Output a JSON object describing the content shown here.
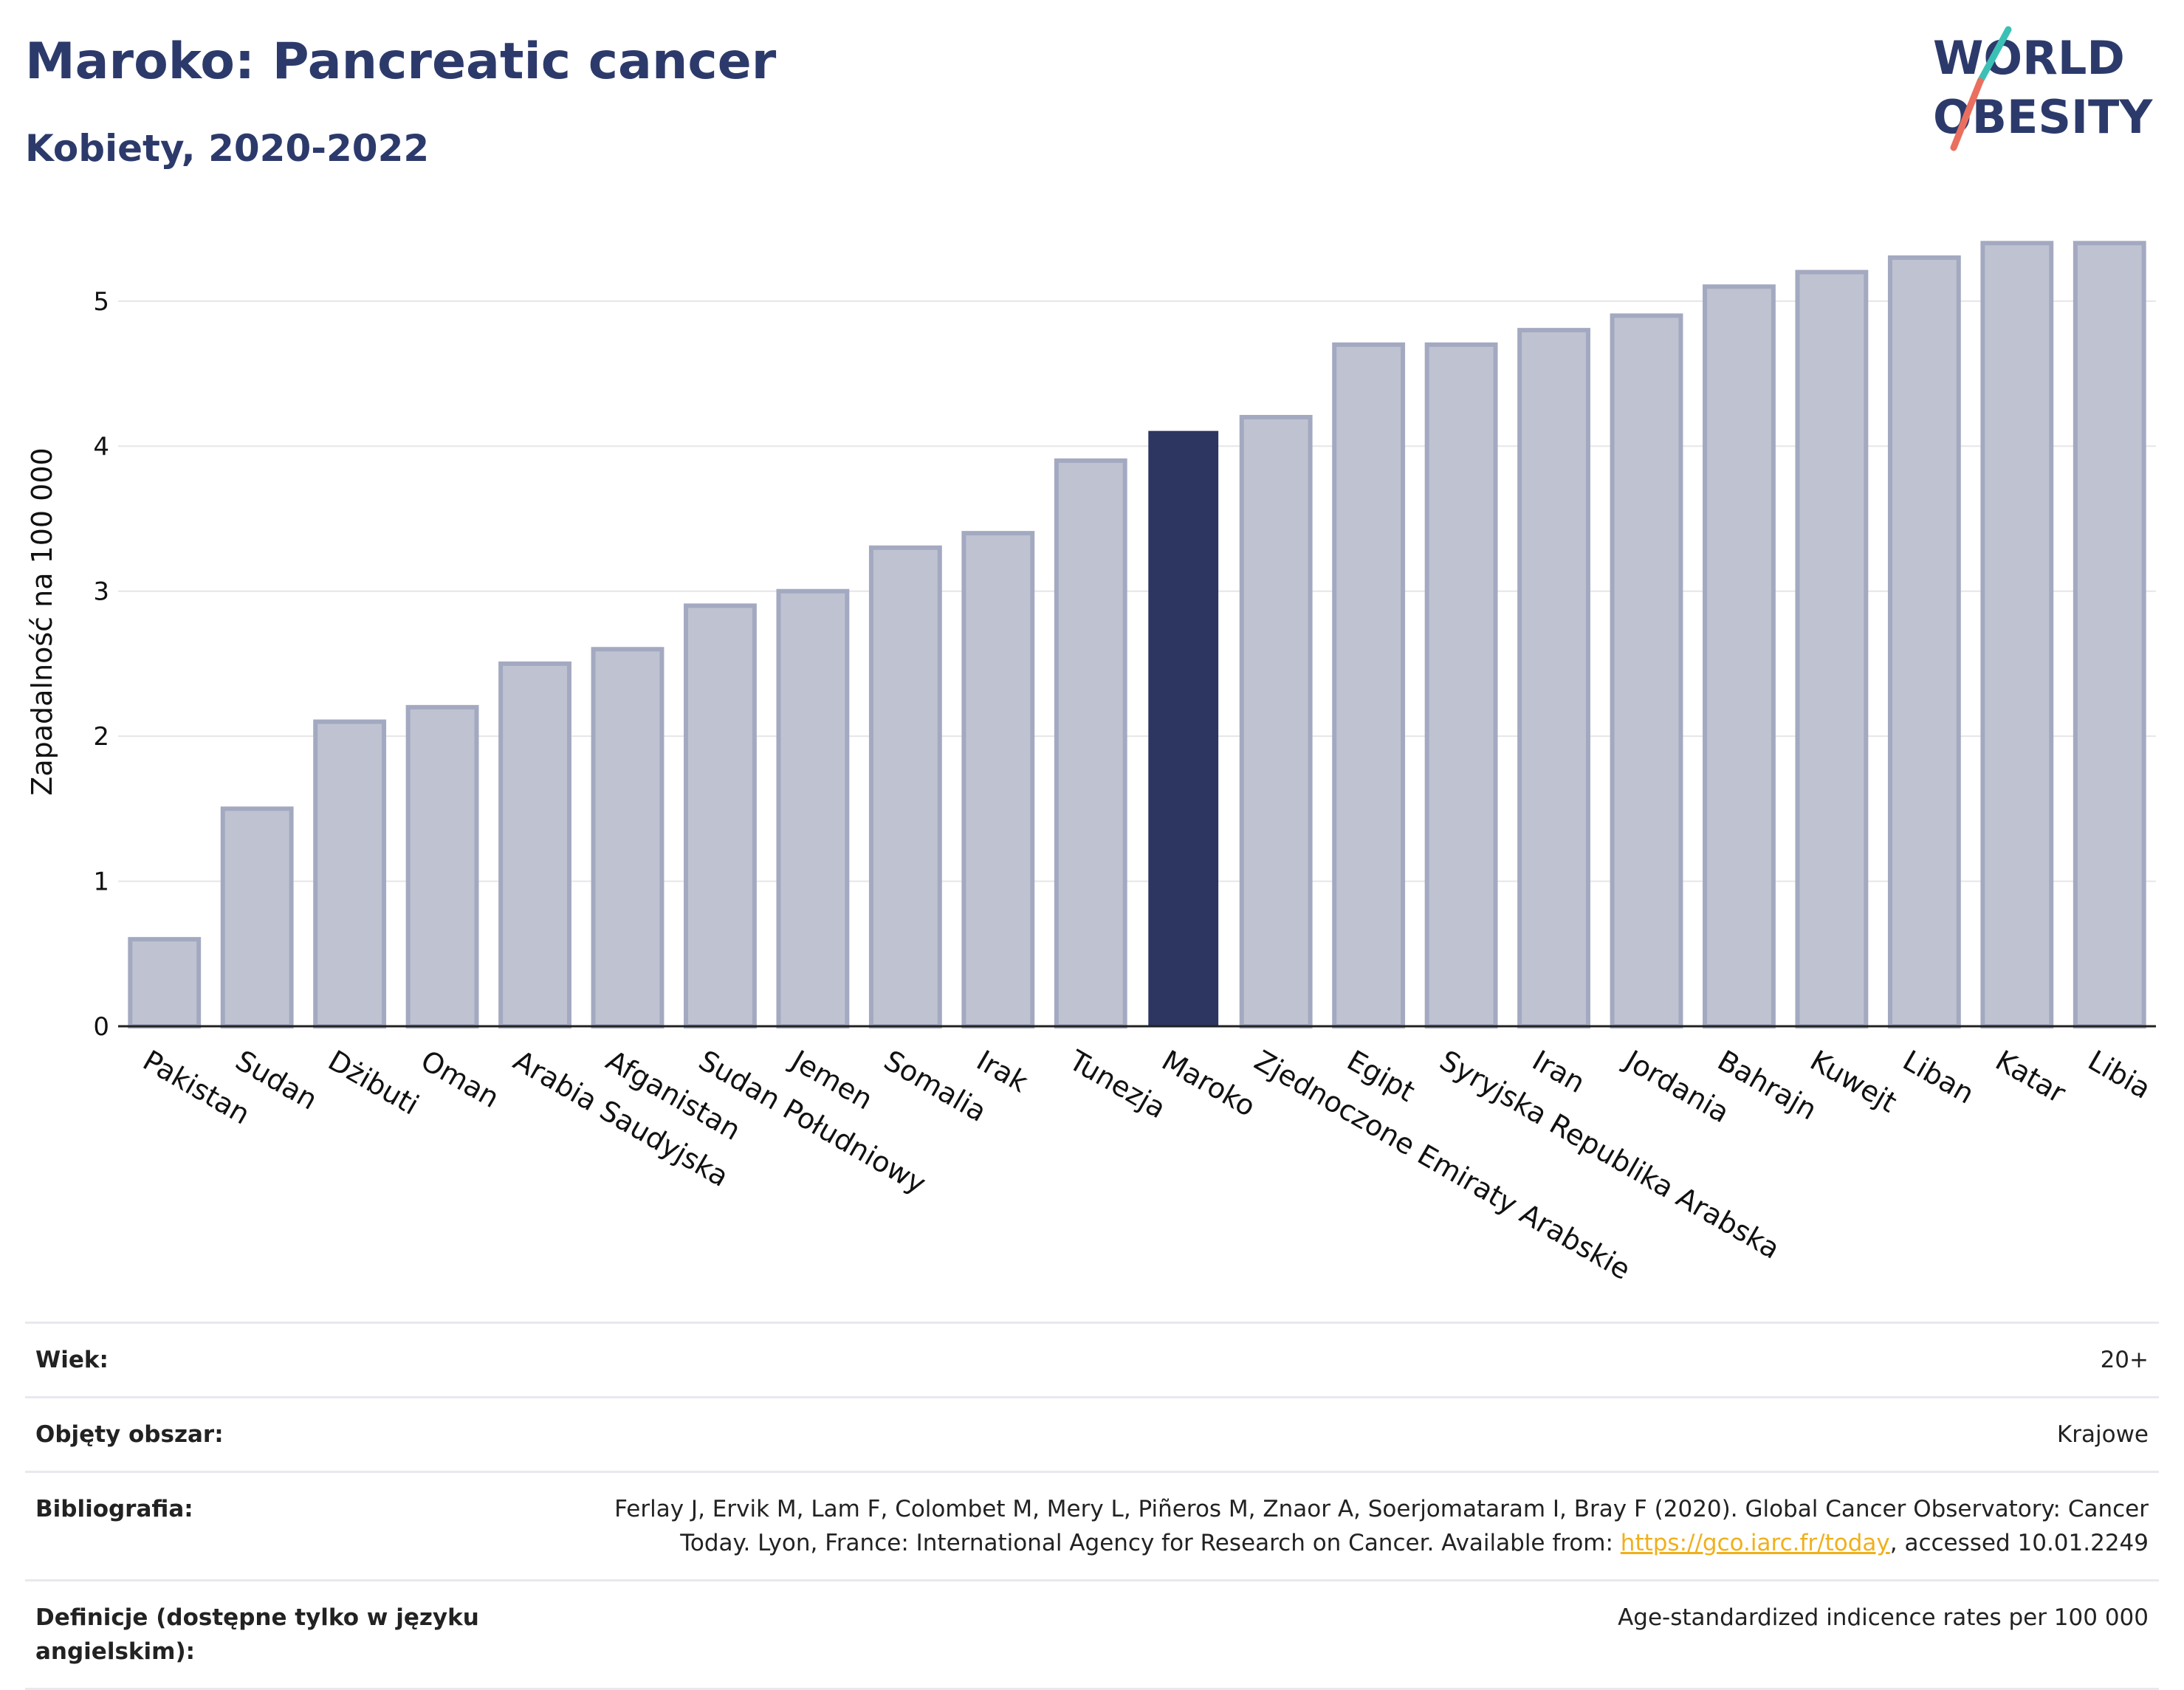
{
  "title": "Maroko: Pancreatic cancer",
  "subtitle": "Kobiety, 2020-2022",
  "logo": {
    "line1": "WORLD",
    "line2": "OBESITY"
  },
  "colors": {
    "highlight": "#2c3661",
    "bar_fill": "#bfc3d1",
    "bar_stroke": "#a3a9c0",
    "grid": "#e6e6ea",
    "title": "#2c3a6b",
    "logo_teal": "#3cc0b5",
    "logo_red": "#ea6f5f",
    "link": "#f0b01a"
  },
  "chart_data": {
    "type": "bar",
    "categories": [
      "Pakistan",
      "Sudan",
      "Dżibuti",
      "Oman",
      "Arabia Saudyjska",
      "Afganistan",
      "Sudan Południowy",
      "Jemen",
      "Somalia",
      "Irak",
      "Tunezja",
      "Maroko",
      "Zjednoczone Emiraty Arabskie",
      "Egipt",
      "Syryjska Republika Arabska",
      "Iran",
      "Jordania",
      "Bahrajn",
      "Kuwejt",
      "Liban",
      "Katar",
      "Libia"
    ],
    "values": [
      0.6,
      1.5,
      2.1,
      2.2,
      2.5,
      2.6,
      2.9,
      3.0,
      3.3,
      3.4,
      3.9,
      4.1,
      4.2,
      4.7,
      4.7,
      4.8,
      4.9,
      5.1,
      5.2,
      5.3,
      5.4,
      5.4
    ],
    "highlight": "Maroko",
    "ylabel": "Zapadalność na 100 000",
    "xlabel": "",
    "ylim": [
      0,
      5.6
    ],
    "yticks": [
      0,
      1,
      2,
      3,
      4,
      5
    ],
    "grid": true,
    "legend": false
  },
  "info": [
    {
      "label": "Wiek:",
      "value": "20+"
    },
    {
      "label": "Objęty obszar:",
      "value": "Krajowe"
    },
    {
      "label": "Bibliografia:",
      "value_line1": "Ferlay J, Ervik M, Lam F, Colombet M, Mery L, Piñeros M, Znaor A, Soerjomataram I, Bray F (2020). Global Cancer Observatory: Cancer",
      "value_pre": "Today. Lyon, France: International Agency for Research on Cancer. Available from: ",
      "link": "https://gco.iarc.fr/today",
      "value_post": ", accessed 10.01.2249"
    },
    {
      "label": "Definicje (dostępne tylko w języku angielskim):",
      "value": "Age-standardized indicence rates per 100 000"
    }
  ]
}
